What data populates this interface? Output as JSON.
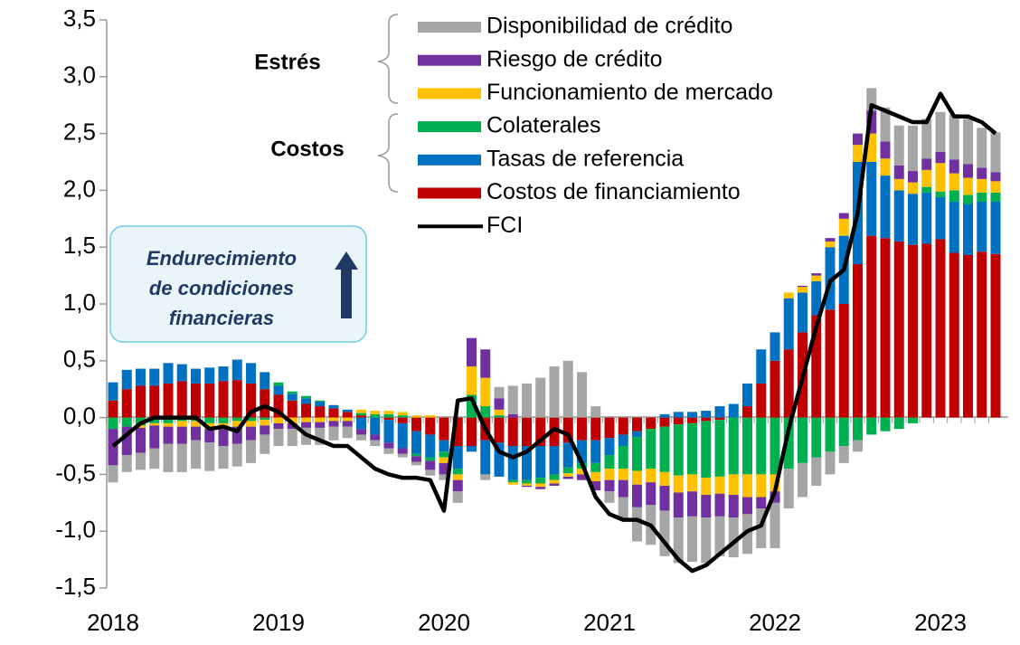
{
  "chart_data": {
    "type": "bar",
    "categories": [
      "2018",
      null,
      null,
      null,
      null,
      null,
      null,
      null,
      null,
      null,
      null,
      null,
      "2019",
      null,
      null,
      null,
      null,
      null,
      null,
      null,
      null,
      null,
      null,
      null,
      "2020",
      null,
      null,
      null,
      null,
      null,
      null,
      null,
      null,
      null,
      null,
      null,
      "2021",
      null,
      null,
      null,
      null,
      null,
      null,
      null,
      null,
      null,
      null,
      null,
      "2022",
      null,
      null,
      null,
      null,
      null,
      null,
      null,
      null,
      null,
      null,
      null,
      "2023",
      null,
      null,
      null,
      null
    ],
    "series": [
      {
        "name": "Disponibilidad de crédito",
        "color": "#a6a6a6",
        "values": [
          -0.15,
          -0.15,
          -0.15,
          -0.18,
          -0.25,
          -0.25,
          -0.25,
          -0.25,
          -0.2,
          -0.2,
          -0.2,
          -0.17,
          -0.15,
          -0.15,
          -0.15,
          -0.15,
          -0.12,
          -0.1,
          -0.05,
          -0.05,
          -0.05,
          -0.03,
          -0.03,
          -0.05,
          -0.05,
          -0.1,
          0,
          -0.05,
          0.1,
          0.25,
          0.3,
          0.35,
          0.45,
          0.5,
          0.4,
          0.1,
          -0.1,
          -0.2,
          -0.3,
          -0.35,
          -0.4,
          -0.4,
          -0.4,
          -0.4,
          -0.35,
          -0.35,
          -0.35,
          -0.35,
          -0.4,
          -0.35,
          -0.3,
          -0.25,
          -0.2,
          -0.15,
          -0.1,
          0.2,
          0.3,
          0.35,
          0.4,
          0.35,
          0.35,
          0.4,
          0.4,
          0.35,
          0.35
        ]
      },
      {
        "name": "Riesgo de crédito",
        "color": "#7030a0",
        "values": [
          -0.32,
          -0.25,
          -0.22,
          -0.2,
          -0.15,
          -0.15,
          -0.12,
          -0.12,
          -0.15,
          -0.15,
          -0.12,
          -0.08,
          -0.05,
          -0.05,
          -0.05,
          -0.05,
          -0.05,
          -0.05,
          -0.05,
          -0.05,
          -0.05,
          -0.05,
          -0.05,
          -0.08,
          -0.1,
          -0.1,
          0.25,
          0.25,
          0.1,
          0.03,
          -0.01,
          -0.02,
          -0.02,
          -0.02,
          -0.05,
          -0.08,
          -0.1,
          -0.15,
          -0.2,
          -0.2,
          -0.22,
          -0.22,
          -0.22,
          -0.2,
          -0.2,
          -0.2,
          -0.15,
          -0.1,
          -0.1,
          0,
          0.01,
          0.02,
          0.03,
          0.05,
          0.1,
          0.2,
          0.15,
          0.12,
          0.1,
          0.1,
          0.1,
          0.12,
          0.12,
          0.1,
          0.08
        ]
      },
      {
        "name": "Funcionamiento de mercado",
        "color": "#ffc000",
        "values": [
          0,
          0,
          -0.02,
          -0.02,
          -0.03,
          -0.05,
          -0.05,
          -0.05,
          -0.05,
          -0.05,
          -0.05,
          -0.05,
          -0.05,
          -0.05,
          -0.04,
          -0.04,
          -0.03,
          -0.03,
          0.03,
          0.03,
          0.03,
          0.03,
          0.02,
          0.02,
          -0.05,
          -0.05,
          0.25,
          0.25,
          0.05,
          -0.02,
          -0.02,
          -0.03,
          -0.03,
          -0.03,
          -0.05,
          -0.08,
          -0.1,
          -0.1,
          -0.12,
          -0.12,
          -0.12,
          -0.15,
          -0.15,
          -0.15,
          -0.15,
          -0.18,
          -0.2,
          -0.2,
          -0.15,
          0.05,
          0.05,
          0.05,
          0.05,
          0.15,
          0.15,
          0.25,
          0.15,
          0.1,
          0.1,
          0.15,
          0.25,
          0.15,
          0.15,
          0.12,
          0.1
        ]
      },
      {
        "name": "Colaterales",
        "color": "#00b050",
        "values": [
          -0.1,
          -0.08,
          -0.07,
          -0.05,
          -0.05,
          -0.03,
          -0.03,
          -0.05,
          -0.05,
          -0.03,
          -0.03,
          -0.02,
          0.03,
          0.02,
          0.02,
          0.01,
          0,
          0,
          0.02,
          0.03,
          0.03,
          0.02,
          -0.02,
          -0.03,
          -0.05,
          -0.05,
          0.2,
          0.1,
          0.02,
          -0.02,
          -0.03,
          -0.05,
          -0.05,
          -0.05,
          -0.05,
          -0.08,
          -0.12,
          -0.2,
          -0.3,
          -0.35,
          -0.4,
          -0.45,
          -0.45,
          -0.5,
          -0.5,
          -0.5,
          -0.5,
          -0.5,
          -0.5,
          -0.45,
          -0.4,
          -0.35,
          -0.3,
          -0.25,
          -0.2,
          -0.15,
          -0.12,
          -0.1,
          -0.05,
          0.05,
          0.05,
          0.1,
          0.08,
          0.08,
          0.08
        ]
      },
      {
        "name": "Tasas de referencia",
        "color": "#0070c0",
        "values": [
          0.16,
          0.17,
          0.15,
          0.15,
          0.18,
          0.15,
          0.13,
          0.14,
          0.13,
          0.18,
          0.18,
          0.15,
          0.08,
          0.06,
          0.05,
          0.04,
          0.03,
          0.02,
          -0.1,
          -0.15,
          -0.2,
          -0.22,
          -0.2,
          -0.2,
          -0.1,
          -0.2,
          -0.05,
          -0.3,
          -0.3,
          -0.3,
          -0.3,
          -0.28,
          -0.25,
          -0.22,
          -0.2,
          -0.2,
          -0.15,
          -0.1,
          -0.05,
          0,
          0.03,
          0.05,
          0.05,
          0.06,
          0.1,
          0.12,
          0.2,
          0.3,
          0.25,
          0.45,
          0.35,
          0.3,
          0.55,
          0.6,
          0.9,
          0.65,
          0.55,
          0.45,
          0.45,
          0.45,
          0.37,
          0.45,
          0.45,
          0.44,
          0.46
        ]
      },
      {
        "name": "Costos de financiamiento",
        "color": "#c00000",
        "values": [
          0.15,
          0.25,
          0.28,
          0.28,
          0.3,
          0.32,
          0.3,
          0.3,
          0.32,
          0.33,
          0.3,
          0.25,
          0.2,
          0.15,
          0.12,
          0.1,
          0.08,
          0.05,
          0.02,
          0,
          -0.02,
          -0.05,
          -0.12,
          -0.15,
          -0.2,
          -0.25,
          -0.25,
          -0.2,
          -0.22,
          -0.25,
          -0.25,
          -0.25,
          -0.25,
          -0.22,
          -0.2,
          -0.2,
          -0.18,
          -0.15,
          -0.12,
          -0.1,
          -0.08,
          -0.06,
          -0.05,
          -0.03,
          -0.02,
          0,
          0.1,
          0.3,
          0.5,
          0.6,
          0.75,
          0.9,
          0.95,
          1.0,
          1.35,
          1.6,
          1.58,
          1.55,
          1.52,
          1.53,
          1.57,
          1.45,
          1.43,
          1.46,
          1.44
        ]
      },
      {
        "name": "FCI",
        "color": "#000000",
        "type": "line",
        "values": [
          -0.25,
          -0.15,
          -0.05,
          0,
          0,
          0,
          0,
          -0.1,
          -0.08,
          -0.12,
          0.05,
          0.1,
          0.05,
          -0.05,
          -0.15,
          -0.2,
          -0.25,
          -0.25,
          -0.35,
          -0.45,
          -0.5,
          -0.53,
          -0.53,
          -0.55,
          -0.82,
          0.15,
          0.17,
          -0.1,
          -0.3,
          -0.35,
          -0.3,
          -0.2,
          -0.1,
          -0.15,
          -0.4,
          -0.7,
          -0.85,
          -0.9,
          -0.9,
          -0.95,
          -1.1,
          -1.25,
          -1.35,
          -1.3,
          -1.2,
          -1.1,
          -1.0,
          -0.95,
          -0.65,
          -0.1,
          0.35,
          0.8,
          1.2,
          1.3,
          1.8,
          2.75,
          2.7,
          2.65,
          2.6,
          2.6,
          2.85,
          2.65,
          2.65,
          2.6,
          2.5
        ]
      }
    ],
    "groups": [
      "Estrés",
      "Costos"
    ],
    "annotation": [
      "Endurecimiento",
      "de condiciones",
      "financieras"
    ],
    "ylim": [
      -1.5,
      3.5
    ],
    "yticks": [
      {
        "value": -1.5,
        "label": "-1,5"
      },
      {
        "value": -1,
        "label": "-1,0"
      },
      {
        "value": -0.5,
        "label": "-0,5"
      },
      {
        "value": 0,
        "label": "0,0"
      },
      {
        "value": 0.5,
        "label": "0,5"
      },
      {
        "value": 1,
        "label": "1,0"
      },
      {
        "value": 1.5,
        "label": "1,5"
      },
      {
        "value": 2,
        "label": "2,0"
      },
      {
        "value": 2.5,
        "label": "2,5"
      },
      {
        "value": 3,
        "label": "3,0"
      },
      {
        "value": 3.5,
        "label": "3,5"
      }
    ],
    "grid": false
  }
}
